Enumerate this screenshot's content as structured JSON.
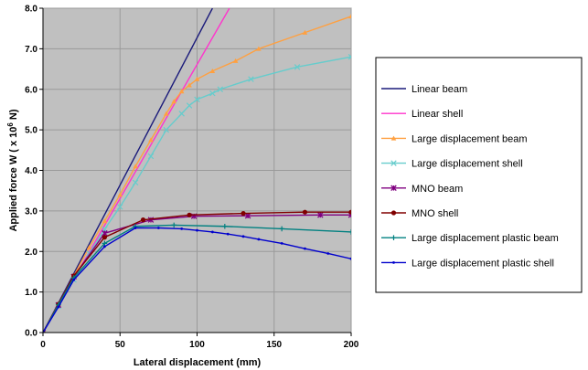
{
  "chart_data": {
    "type": "line",
    "xlabel": "Lateral displacement (mm)",
    "ylabel_pre": "Applied force W ( x 10",
    "ylabel_sup": "6",
    "ylabel_post": " N)",
    "xlim": [
      0,
      200
    ],
    "ylim": [
      0,
      8
    ],
    "x_ticks": [
      0,
      50,
      100,
      150,
      200
    ],
    "y_ticks": [
      "0.0",
      "1.0",
      "2.0",
      "3.0",
      "4.0",
      "5.0",
      "6.0",
      "7.0",
      "8.0"
    ],
    "grid": true,
    "plot_background": "#c0c0c0",
    "legend_position": "right",
    "series": [
      {
        "name": "Linear beam",
        "color": "#1a1a7a",
        "marker": "none",
        "x": [
          0,
          110
        ],
        "y": [
          0,
          8.0
        ]
      },
      {
        "name": "Linear shell",
        "color": "#ff33cc",
        "marker": "none",
        "x": [
          0,
          121
        ],
        "y": [
          0,
          8.0
        ]
      },
      {
        "name": "Large displacement beam",
        "color": "#ffa040",
        "marker": "triangle",
        "x": [
          0,
          10,
          20,
          30,
          40,
          50,
          60,
          70,
          80,
          85,
          90,
          95,
          100,
          110,
          125,
          140,
          170,
          200
        ],
        "y": [
          0,
          0.7,
          1.4,
          2.1,
          2.75,
          3.4,
          4.1,
          4.75,
          5.4,
          5.7,
          5.95,
          6.1,
          6.25,
          6.45,
          6.7,
          7.0,
          7.4,
          7.8
        ]
      },
      {
        "name": "Large displacement shell",
        "color": "#66cccc",
        "marker": "x",
        "x": [
          0,
          10,
          20,
          30,
          40,
          50,
          60,
          70,
          80,
          90,
          95,
          100,
          110,
          115,
          135,
          165,
          200
        ],
        "y": [
          0,
          0.65,
          1.3,
          1.95,
          2.55,
          3.1,
          3.7,
          4.35,
          5.0,
          5.4,
          5.6,
          5.75,
          5.9,
          6.0,
          6.25,
          6.55,
          6.8
        ]
      },
      {
        "name": "MNO beam",
        "color": "#800080",
        "marker": "star",
        "x": [
          0,
          10,
          20,
          40,
          70,
          98,
          133,
          180,
          200
        ],
        "y": [
          0,
          0.68,
          1.38,
          2.45,
          2.78,
          2.87,
          2.88,
          2.9,
          2.9
        ]
      },
      {
        "name": "MNO shell",
        "color": "#800000",
        "marker": "circle",
        "x": [
          0,
          10,
          20,
          40,
          65,
          95,
          130,
          170,
          200
        ],
        "y": [
          0,
          0.7,
          1.4,
          2.35,
          2.78,
          2.9,
          2.94,
          2.97,
          2.97
        ]
      },
      {
        "name": "Large displacement plastic beam",
        "color": "#008080",
        "marker": "plus",
        "x": [
          0,
          10,
          20,
          40,
          60,
          85,
          118,
          155,
          200
        ],
        "y": [
          0,
          0.68,
          1.35,
          2.2,
          2.62,
          2.65,
          2.62,
          2.56,
          2.48
        ]
      },
      {
        "name": "Large displacement plastic shell",
        "color": "#0000cc",
        "marker": "dot",
        "x": [
          0,
          10,
          20,
          40,
          60,
          75,
          90,
          100,
          110,
          120,
          130,
          140,
          155,
          170,
          185,
          200
        ],
        "y": [
          0,
          0.63,
          1.3,
          2.12,
          2.58,
          2.58,
          2.56,
          2.52,
          2.48,
          2.43,
          2.37,
          2.3,
          2.2,
          2.07,
          1.95,
          1.82
        ]
      }
    ]
  }
}
